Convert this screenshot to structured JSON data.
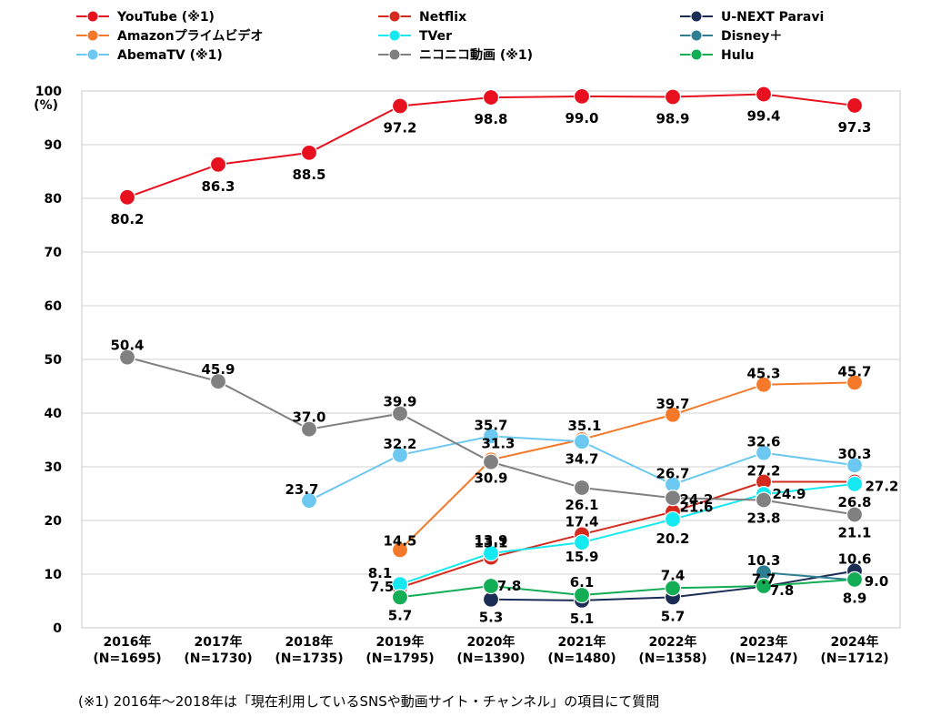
{
  "chart_data": {
    "type": "line",
    "ylabel": "(%)",
    "ylim": [
      0,
      100
    ],
    "yticks": [
      0,
      10,
      20,
      30,
      40,
      50,
      60,
      70,
      80,
      90,
      100
    ],
    "grid": true,
    "legend_position": "top",
    "categories": [
      [
        "2016年",
        "(N=1695)"
      ],
      [
        "2017年",
        "(N=1730)"
      ],
      [
        "2018年",
        "(N=1735)"
      ],
      [
        "2019年",
        "(N=1795)"
      ],
      [
        "2020年",
        "(N=1390)"
      ],
      [
        "2021年",
        "(N=1480)"
      ],
      [
        "2022年",
        "(N=1358)"
      ],
      [
        "2023年",
        "(N=1247)"
      ],
      [
        "2024年",
        "(N=1712)"
      ]
    ],
    "series": [
      {
        "name": "YouTube (※1)",
        "color": "#e8101e",
        "values": [
          80.2,
          86.3,
          88.5,
          97.2,
          98.8,
          99.0,
          98.9,
          99.4,
          97.3
        ]
      },
      {
        "name": "Amazonプライムビデオ",
        "color": "#f5792a",
        "values": [
          null,
          null,
          null,
          14.5,
          31.3,
          35.1,
          39.7,
          45.3,
          45.7
        ]
      },
      {
        "name": "AbemaTV (※1)",
        "color": "#6cc8f0",
        "values": [
          null,
          null,
          23.7,
          32.2,
          35.7,
          34.7,
          26.7,
          32.6,
          30.3
        ]
      },
      {
        "name": "Netflix",
        "color": "#d42a1e",
        "values": [
          null,
          null,
          null,
          7.5,
          13.1,
          17.4,
          21.6,
          27.2,
          27.2
        ]
      },
      {
        "name": "TVer",
        "color": "#14e8f0",
        "values": [
          null,
          null,
          null,
          8.1,
          13.9,
          15.9,
          20.2,
          24.9,
          26.8
        ]
      },
      {
        "name": "ニコニコ動画 (※1)",
        "color": "#808080",
        "values": [
          50.4,
          45.9,
          37.0,
          39.9,
          30.9,
          26.1,
          24.2,
          23.8,
          21.1
        ]
      },
      {
        "name": "U-NEXT Paravi",
        "color": "#1b2d55",
        "values": [
          null,
          null,
          null,
          null,
          5.3,
          5.1,
          5.7,
          7.7,
          10.6
        ]
      },
      {
        "name": "Disney＋",
        "color": "#2f7f93",
        "values": [
          null,
          null,
          null,
          null,
          null,
          null,
          null,
          10.3,
          8.9
        ]
      },
      {
        "name": "Hulu",
        "color": "#12ad55",
        "values": [
          null,
          null,
          null,
          5.7,
          7.8,
          6.1,
          7.4,
          7.8,
          9.0
        ]
      }
    ],
    "data_labels": [
      {
        "series": 0,
        "points": [
          "80.2",
          "86.3",
          "88.5",
          "97.2",
          "98.8",
          "99.0",
          "98.9",
          "99.4",
          "97.3"
        ]
      },
      {
        "series": 1,
        "points": [
          null,
          null,
          null,
          "14.5",
          "31.3",
          "35.1",
          "39.7",
          "45.3",
          "45.7"
        ]
      },
      {
        "series": 2,
        "points": [
          null,
          null,
          "23.7",
          "32.2",
          "35.7",
          "34.7",
          "26.7",
          "32.6",
          "30.3"
        ]
      },
      {
        "series": 3,
        "points": [
          null,
          null,
          null,
          "7.5",
          "13.1",
          "17.4",
          "21.6",
          "27.2",
          "27.2"
        ]
      },
      {
        "series": 4,
        "points": [
          null,
          null,
          null,
          "8.1",
          "13.9",
          "15.9",
          "20.2",
          "24.9",
          "26.8"
        ]
      },
      {
        "series": 5,
        "points": [
          "50.4",
          "45.9",
          "37.0",
          "39.9",
          "30.9",
          "26.1",
          "24.2",
          "23.8",
          "21.1"
        ]
      },
      {
        "series": 6,
        "points": [
          null,
          null,
          null,
          null,
          "5.3",
          "5.1",
          "5.7",
          "7.7",
          "10.6"
        ]
      },
      {
        "series": 7,
        "points": [
          null,
          null,
          null,
          null,
          null,
          null,
          null,
          "10.3",
          "8.9"
        ]
      },
      {
        "series": 8,
        "points": [
          null,
          null,
          null,
          "5.7",
          "7.8",
          "6.1",
          "7.4",
          "7.8",
          "9.0"
        ]
      }
    ]
  },
  "footnote": "(※1) 2016年～2018年は「現在利用しているSNSや動画サイト・チャンネル」の項目にて質問"
}
